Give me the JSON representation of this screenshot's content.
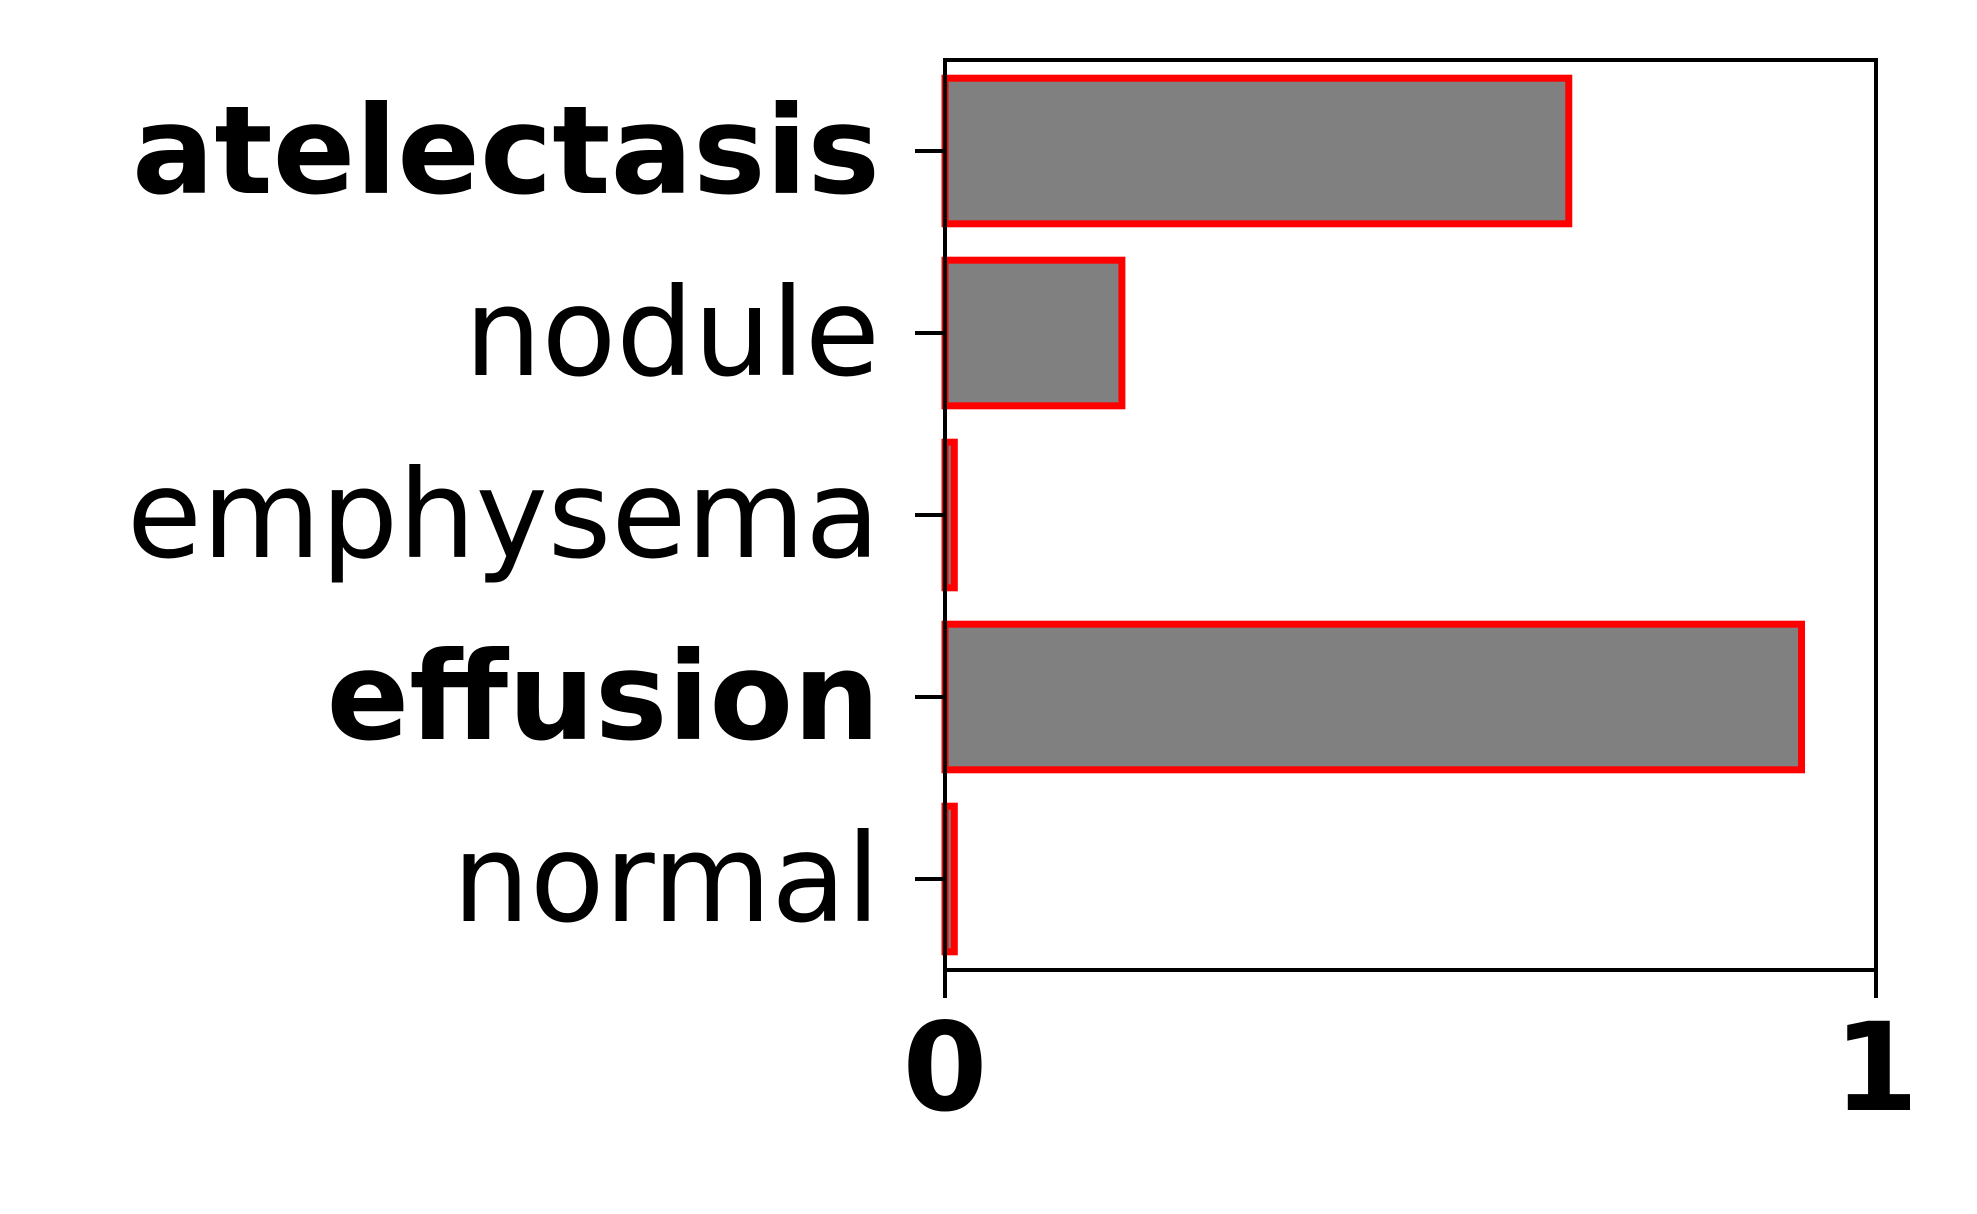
{
  "chart_data": {
    "type": "bar",
    "orientation": "horizontal",
    "categories": [
      "atelectasis",
      "nodule",
      "emphysema",
      "effusion",
      "normal"
    ],
    "highlighted": [
      true,
      false,
      false,
      true,
      false
    ],
    "values": [
      0.67,
      0.19,
      0.01,
      0.92,
      0.01
    ],
    "xlim": [
      0,
      1
    ],
    "xticks": [
      "0",
      "1"
    ],
    "title": "",
    "xlabel": "",
    "ylabel": "",
    "grid": false,
    "colors": {
      "bar_fill": "#808080",
      "bar_edge": "#ff0000",
      "axis": "#000000"
    }
  }
}
